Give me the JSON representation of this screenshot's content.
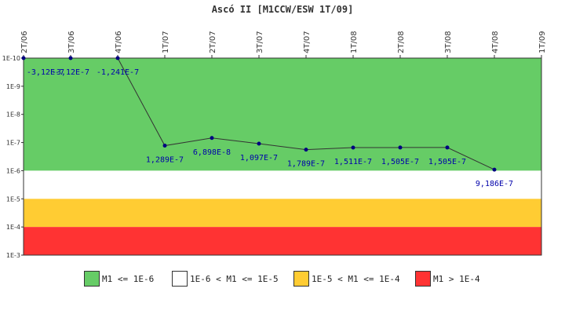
{
  "chart_data": {
    "type": "line",
    "title": "Ascó II [M1CCW/ESW 1T/09]",
    "y_scale": "log",
    "ylim": [
      1e-10,
      0.001
    ],
    "y_axis_inverted": true,
    "yticks": [
      "1E-10",
      "1E-9",
      "1E-8",
      "1E-7",
      "1E-6",
      "1E-5",
      "1E-4",
      "1E-3"
    ],
    "categories": [
      "2T/06",
      "3T/06",
      "4T/06",
      "1T/07",
      "2T/07",
      "3T/07",
      "4T/07",
      "1T/08",
      "2T/08",
      "3T/08",
      "4T/08",
      "1T/09"
    ],
    "series": [
      {
        "values": [
          -3.12e-07,
          -3.12e-07,
          -1.241e-07,
          1.289e-07,
          6.898e-08,
          1.097e-07,
          1.789e-07,
          1.511e-07,
          1.505e-07,
          1.505e-07,
          9.186e-07,
          null
        ],
        "labels": [
          "-3,12E-7",
          "-3,12E-7",
          "-1,241E-7",
          "1,289E-7",
          "6,898E-8",
          "1,097E-7",
          "1,789E-7",
          "1,511E-7",
          "1,505E-7",
          "1,505E-7",
          "9,186E-7",
          ""
        ],
        "color": "#000080"
      }
    ],
    "bands": [
      {
        "label": "M1 <= 1E-6",
        "from": 1e-10,
        "to": 1e-06,
        "color": "#66cc66"
      },
      {
        "label": "1E-6 < M1 <= 1E-5",
        "from": 1e-06,
        "to": 1e-05,
        "color": "#ffffff"
      },
      {
        "label": "1E-5 < M1 <= 1E-4",
        "from": 1e-05,
        "to": 0.0001,
        "color": "#ffcc33"
      },
      {
        "label": "M1 > 1E-4",
        "from": 0.0001,
        "to": 0.001,
        "color": "#ff3333"
      }
    ],
    "legend_position": "bottom",
    "grid": false
  }
}
